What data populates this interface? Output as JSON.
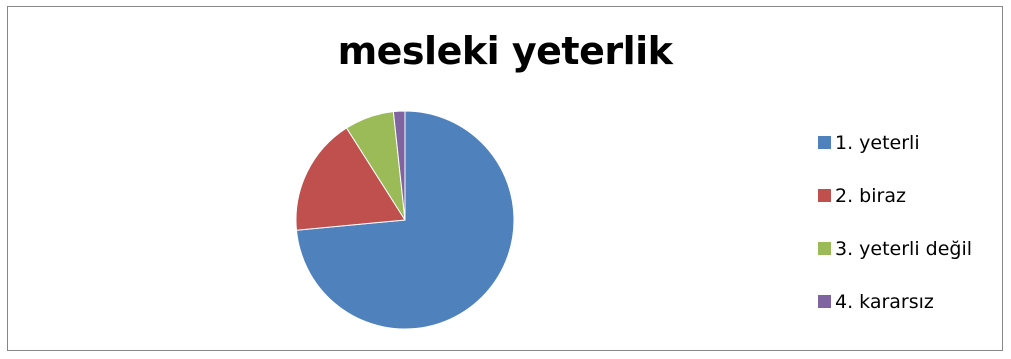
{
  "chart_data": {
    "type": "pie",
    "title": "mesleki yeterlik",
    "categories": [
      "1. yeterli",
      "2. biraz",
      "3. yeterli değil",
      "4. kararsız"
    ],
    "values": [
      73.5,
      17.5,
      7.3,
      1.7
    ],
    "colors": [
      "#4F81BD",
      "#C0504D",
      "#9BBB59",
      "#8064A2"
    ],
    "start_angle_deg": 0,
    "direction": "clockwise",
    "legend_position": "right"
  }
}
